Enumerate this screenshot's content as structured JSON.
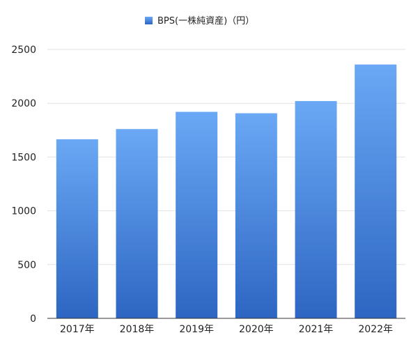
{
  "chart_data": {
    "type": "bar",
    "title": "",
    "xlabel": "",
    "ylabel": "",
    "categories": [
      "2017年",
      "2018年",
      "2019年",
      "2020年",
      "2021年",
      "2022年"
    ],
    "series": [
      {
        "name": "BPS(一株純資産)（円）",
        "values": [
          1665,
          1760,
          1920,
          1907,
          2020,
          2360
        ]
      }
    ],
    "ylim": [
      0,
      2500
    ],
    "yticks": [
      0,
      500,
      1000,
      1500,
      2000,
      2500
    ],
    "grid": true,
    "legend_position": "top-center",
    "colors": {
      "bar_top": "#6aa8f5",
      "bar_bottom": "#2d66c2"
    }
  }
}
